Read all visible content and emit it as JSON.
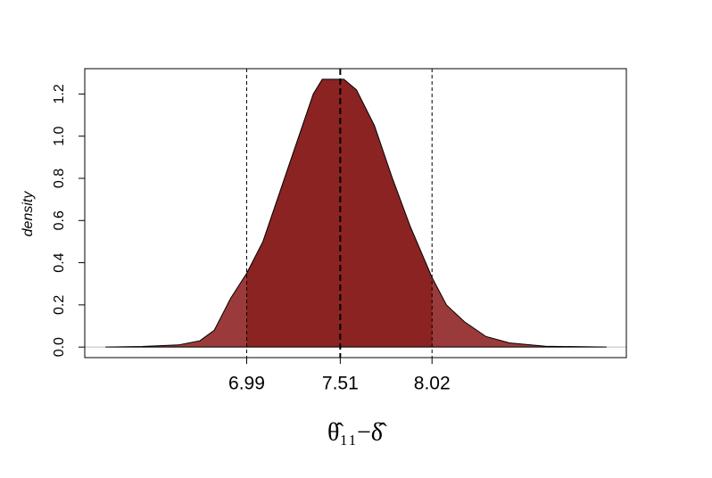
{
  "chart_data": {
    "type": "density",
    "xlabel": "θ̂₁₁−δ̂",
    "ylabel": "density",
    "x": [
      6.205,
      6.41,
      6.61,
      6.73,
      6.81,
      6.9,
      6.99,
      7.08,
      7.18,
      7.28,
      7.36,
      7.41,
      7.53,
      7.6,
      7.7,
      7.8,
      7.9,
      8.02,
      8.1,
      8.2,
      8.32,
      8.45,
      8.65,
      8.99
    ],
    "values": [
      0,
      0.003,
      0.01,
      0.03,
      0.08,
      0.23,
      0.35,
      0.5,
      0.75,
      1.0,
      1.2,
      1.27,
      1.27,
      1.22,
      1.05,
      0.8,
      0.57,
      0.33,
      0.2,
      0.12,
      0.05,
      0.02,
      0.004,
      0
    ],
    "color": "#9b3a3a",
    "interval_color": "#8b2323",
    "xlim": [
      6.09,
      9.1
    ],
    "xticks": [
      6.99,
      7.51,
      8.02
    ],
    "ylim": [
      -0.05,
      1.32
    ],
    "yticks": [
      0.0,
      0.2,
      0.4,
      0.6,
      0.8,
      1.0,
      1.2
    ]
  }
}
